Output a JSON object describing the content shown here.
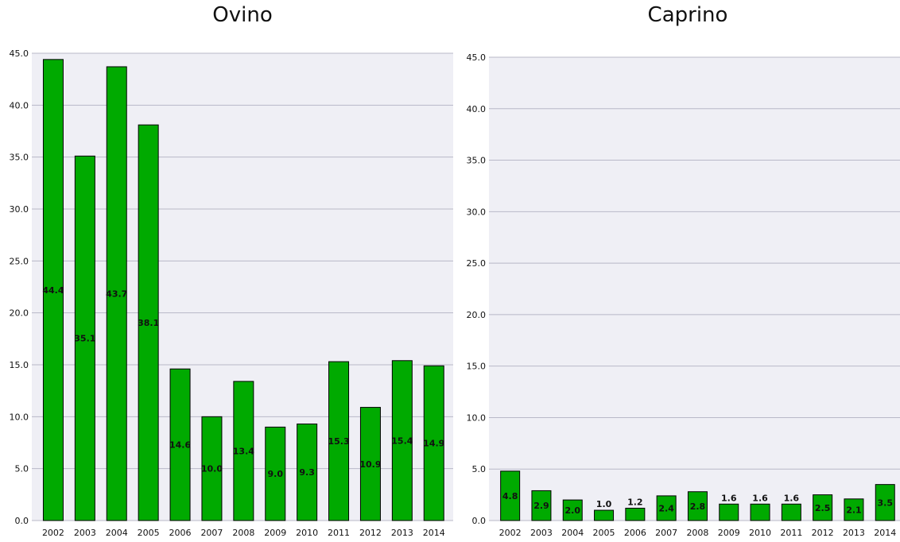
{
  "chart_data": [
    {
      "type": "bar",
      "title": "Ovino",
      "categories": [
        "2002",
        "2003",
        "2004",
        "2005",
        "2006",
        "2007",
        "2008",
        "2009",
        "2010",
        "2011",
        "2012",
        "2013",
        "2014"
      ],
      "values": [
        44.4,
        35.1,
        43.7,
        38.1,
        14.6,
        10.0,
        13.4,
        9.0,
        9.3,
        15.3,
        10.9,
        15.4,
        14.9
      ],
      "data_labels": [
        "44.4",
        "35.1",
        "43.7",
        "38.1",
        "14.6",
        "10.0",
        "13.4",
        "9.0",
        "9.3",
        "15.3",
        "10.9",
        "15.4",
        "14.9"
      ],
      "ylim": [
        0,
        45
      ],
      "yticks": [
        "0.0",
        "5.0",
        "10.0",
        "15.0",
        "20.0",
        "25.0",
        "30.0",
        "35.0",
        "40.0",
        "45.0"
      ],
      "grid": true,
      "bar_color": "#00aa00",
      "plot_background": "#efeff5",
      "grid_color": "#b8b8c8"
    },
    {
      "type": "bar",
      "title": "Caprino",
      "categories": [
        "2002",
        "2003",
        "2004",
        "2005",
        "2006",
        "2007",
        "2008",
        "2009",
        "2010",
        "2011",
        "2012",
        "2013",
        "2014"
      ],
      "values": [
        4.8,
        2.9,
        2.0,
        1.0,
        1.2,
        2.4,
        2.8,
        1.6,
        1.6,
        1.6,
        2.5,
        2.1,
        3.5
      ],
      "data_labels": [
        "4.8",
        "2.9",
        "2.0",
        "1.0",
        "1.2",
        "2.4",
        "2.8",
        "1.6",
        "1.6",
        "1.6",
        "2.5",
        "2.1",
        "3.5"
      ],
      "ylim": [
        0,
        45
      ],
      "yticks": [
        "0.0",
        "5.0",
        "10.0",
        "15.0",
        "20.0",
        "25.0",
        "30.0",
        "35.0",
        "40.0",
        "45.0"
      ],
      "grid": true,
      "bar_color": "#00aa00",
      "plot_background": "#efeff5",
      "grid_color": "#b8b8c8"
    }
  ]
}
